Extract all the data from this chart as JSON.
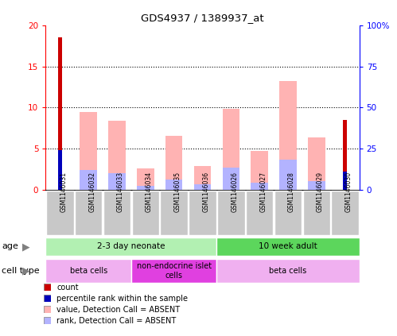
{
  "title": "GDS4937 / 1389937_at",
  "samples": [
    "GSM1146031",
    "GSM1146032",
    "GSM1146033",
    "GSM1146034",
    "GSM1146035",
    "GSM1146036",
    "GSM1146026",
    "GSM1146027",
    "GSM1146028",
    "GSM1146029",
    "GSM1146030"
  ],
  "count_values": [
    18.5,
    0,
    0,
    0,
    0,
    0,
    0,
    0,
    0,
    0,
    8.5
  ],
  "percentile_rank_values": [
    4.8,
    0,
    0,
    0,
    0,
    0,
    0,
    0,
    0,
    0,
    2.2
  ],
  "absent_value": [
    0,
    9.5,
    8.4,
    2.6,
    6.6,
    2.9,
    9.8,
    4.7,
    13.2,
    6.4,
    0
  ],
  "absent_rank": [
    0,
    2.4,
    2.0,
    0.5,
    1.3,
    0.7,
    2.7,
    0.9,
    3.7,
    1.1,
    0
  ],
  "ylim_left": [
    0,
    20
  ],
  "ylim_right": [
    0,
    100
  ],
  "yticks_left": [
    0,
    5,
    10,
    15,
    20
  ],
  "yticks_right": [
    0,
    25,
    50,
    75,
    100
  ],
  "ytick_labels_right": [
    "0",
    "25",
    "50",
    "75",
    "100%"
  ],
  "age_groups": [
    {
      "label": "2-3 day neonate",
      "start": 0,
      "end": 6,
      "color": "#b2f0b2"
    },
    {
      "label": "10 week adult",
      "start": 6,
      "end": 11,
      "color": "#5cd65c"
    }
  ],
  "cell_type_groups": [
    {
      "label": "beta cells",
      "start": 0,
      "end": 3,
      "color": "#f0b0f0"
    },
    {
      "label": "non-endocrine islet\ncells",
      "start": 3,
      "end": 6,
      "color": "#e040e0"
    },
    {
      "label": "beta cells",
      "start": 6,
      "end": 11,
      "color": "#f0b0f0"
    }
  ],
  "colors": {
    "count": "#cc0000",
    "percentile_rank": "#0000bb",
    "absent_value": "#ffb3b3",
    "absent_rank": "#b3b3ff",
    "bg_xtick": "#c8c8c8"
  },
  "legend": [
    {
      "label": "count",
      "color": "#cc0000"
    },
    {
      "label": "percentile rank within the sample",
      "color": "#0000bb"
    },
    {
      "label": "value, Detection Call = ABSENT",
      "color": "#ffb3b3"
    },
    {
      "label": "rank, Detection Call = ABSENT",
      "color": "#b3b3ff"
    }
  ]
}
